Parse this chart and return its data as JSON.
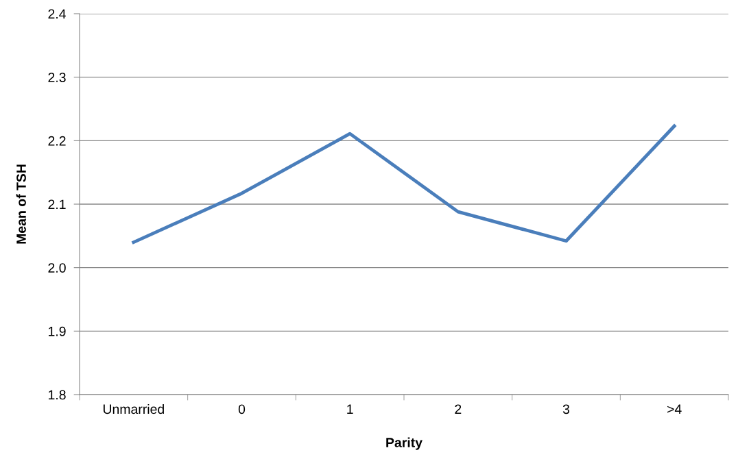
{
  "chart_data": {
    "type": "line",
    "xlabel": "Parity",
    "ylabel": "Mean of TSH",
    "categories": [
      "Unmarried",
      "0",
      "1",
      "2",
      "3",
      ">4"
    ],
    "series": [
      {
        "color": "#4a7ebb",
        "values": [
          2.04,
          2.117,
          2.211,
          2.088,
          2.042,
          2.223
        ]
      }
    ],
    "ylim": [
      1.8,
      2.4
    ],
    "yticks": [
      {
        "value": 1.8,
        "label": "1.8"
      },
      {
        "value": 1.9,
        "label": "1.9"
      },
      {
        "value": 2.0,
        "label": "2.0"
      },
      {
        "value": 2.1,
        "label": "2.1"
      },
      {
        "value": 2.2,
        "label": "2.2"
      },
      {
        "value": 2.3,
        "label": "2.3"
      },
      {
        "value": 2.4,
        "label": "2.4"
      }
    ],
    "grid": "y",
    "legend": false,
    "marker": "none",
    "line_style": "solid"
  }
}
